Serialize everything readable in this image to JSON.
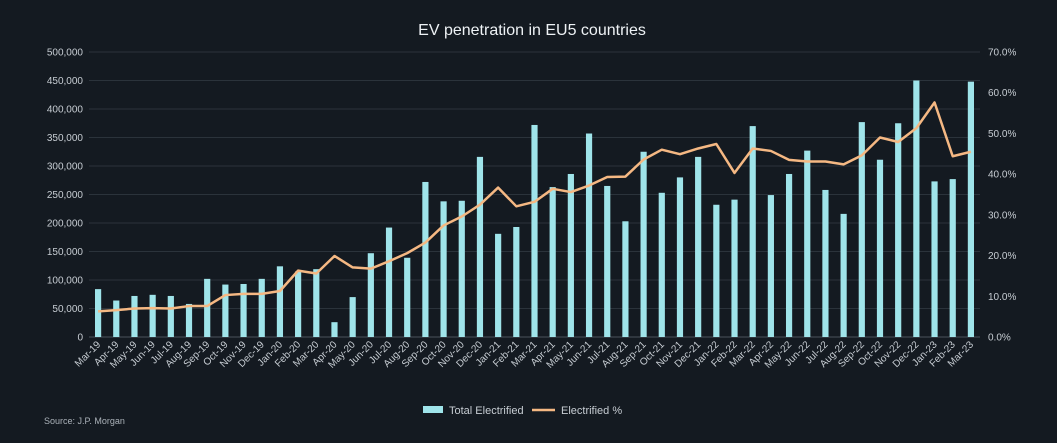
{
  "chart_data": {
    "type": "bar",
    "title": "EV penetration in EU5 countries",
    "source": "Source: J.P. Morgan",
    "categories": [
      "Mar-19",
      "Apr-19",
      "May-19",
      "Jun-19",
      "Jul-19",
      "Aug-19",
      "Sep-19",
      "Oct-19",
      "Nov-19",
      "Dec-19",
      "Jan-20",
      "Feb-20",
      "Mar-20",
      "Apr-20",
      "May-20",
      "Jun-20",
      "Jul-20",
      "Aug-20",
      "Sep-20",
      "Oct-20",
      "Nov-20",
      "Dec-20",
      "Jan-21",
      "Feb-21",
      "Mar-21",
      "Apr-21",
      "May-21",
      "Jun-21",
      "Jul-21",
      "Aug-21",
      "Sep-21",
      "Oct-21",
      "Nov-21",
      "Dec-21",
      "Jan-22",
      "Feb-22",
      "Mar-22",
      "Apr-22",
      "May-22",
      "Jun-22",
      "Jul-22",
      "Aug-22",
      "Sep-22",
      "Oct-22",
      "Nov-22",
      "Dec-22",
      "Jan-23",
      "Feb-23",
      "Mar-23"
    ],
    "y_left": {
      "ticks": [
        "0",
        "50,000",
        "100,000",
        "150,000",
        "200,000",
        "250,000",
        "300,000",
        "350,000",
        "400,000",
        "450,000",
        "500,000"
      ],
      "ylim": [
        0,
        500000
      ]
    },
    "y_right": {
      "ticks": [
        "0.0%",
        "10.0%",
        "20.0%",
        "30.0%",
        "40.0%",
        "50.0%",
        "60.0%",
        "70.0%"
      ],
      "ylim": [
        0,
        70
      ]
    },
    "series": [
      {
        "name": "Total Electrified",
        "type": "bar",
        "axis": "left",
        "color": "#9fe4ea",
        "values": [
          84000,
          64000,
          72000,
          74000,
          72000,
          58000,
          102000,
          92000,
          93000,
          102000,
          124000,
          115000,
          119000,
          26000,
          70000,
          147000,
          192000,
          139000,
          272000,
          238000,
          239000,
          316000,
          181000,
          193000,
          372000,
          263000,
          286000,
          357000,
          265000,
          203000,
          325000,
          253000,
          280000,
          316000,
          232000,
          241000,
          370000,
          249000,
          286000,
          327000,
          258000,
          216000,
          377000,
          311000,
          375000,
          450000,
          273000,
          277000,
          448000
        ]
      },
      {
        "name": "Electrified %",
        "type": "line",
        "axis": "right",
        "color": "#f5b883",
        "values": [
          6.3,
          6.6,
          7.0,
          7.1,
          7.0,
          7.6,
          7.6,
          10.3,
          10.6,
          10.6,
          11.3,
          16.3,
          15.6,
          19.9,
          17.1,
          16.8,
          18.6,
          20.6,
          23.2,
          27.4,
          29.6,
          32.5,
          36.7,
          32.1,
          33.2,
          36.4,
          35.6,
          37.2,
          39.3,
          39.4,
          43.6,
          46.0,
          44.9,
          46.3,
          47.4,
          40.3,
          46.3,
          45.7,
          43.5,
          43.1,
          43.1,
          42.4,
          44.6,
          49.0,
          47.9,
          51.3,
          57.6,
          44.4,
          45.5
        ]
      }
    ],
    "legend": {
      "placement": "bottom-center",
      "items": [
        "Total Electrified",
        "Electrified %"
      ]
    },
    "grid": {
      "horizontal": true,
      "vertical": false
    }
  }
}
